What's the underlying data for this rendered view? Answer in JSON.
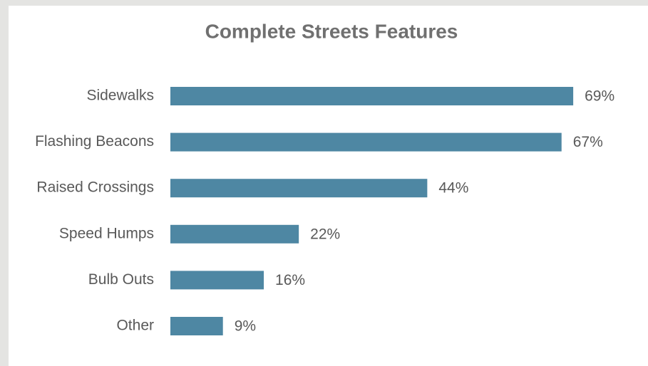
{
  "chart_data": {
    "type": "bar",
    "orientation": "horizontal",
    "title": "Complete Streets Features",
    "categories": [
      "Sidewalks",
      "Flashing Beacons",
      "Raised Crossings",
      "Speed Humps",
      "Bulb Outs",
      "Other"
    ],
    "values": [
      69,
      67,
      44,
      22,
      16,
      9
    ],
    "value_labels": [
      "69%",
      "67%",
      "44%",
      "22%",
      "16%",
      "9%"
    ],
    "color": "#4e87a3"
  }
}
